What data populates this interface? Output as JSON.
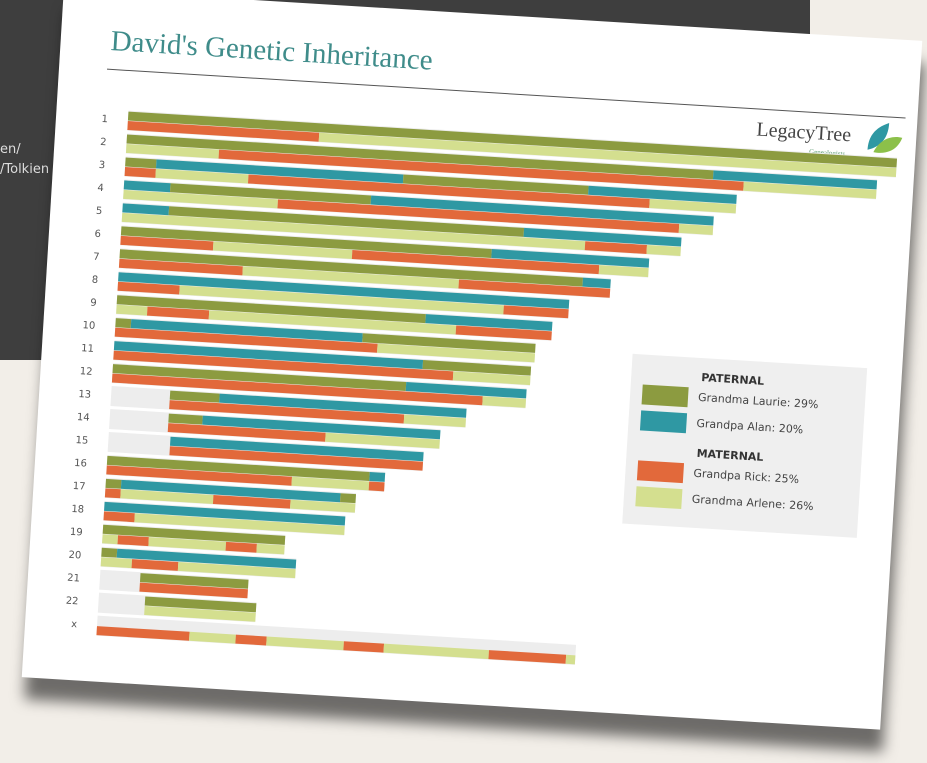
{
  "background_screen": {
    "texts": [
      "en/",
      "/Tolkien"
    ]
  },
  "chart_data": {
    "type": "chromosome-painting",
    "title": "David's Genetic Inheritance",
    "logo": {
      "name": "LegacyTree",
      "subtitle": "Genealogists"
    },
    "xlim": [
      0,
      249
    ],
    "legend_groups": [
      {
        "title": "PATERNAL",
        "series": [
          {
            "name": "Grandma Laurie: 29%",
            "color": "#8c9b40"
          },
          {
            "name": "Grandpa Alan: 20%",
            "color": "#2f98a3"
          }
        ]
      },
      {
        "title": "MATERNAL",
        "series": [
          {
            "name": "Grandpa Rick: 25%",
            "color": "#e2693b"
          },
          {
            "name": "Grandma Arlene: 26%",
            "color": "#d4df8f"
          }
        ]
      }
    ],
    "chromosomes": [
      {
        "label": "1",
        "length": 249,
        "paternal": [
          [
            0,
            249,
            0
          ]
        ],
        "maternal": [
          [
            0,
            62,
            0
          ],
          [
            62,
            249,
            1
          ]
        ]
      },
      {
        "label": "2",
        "length": 243,
        "paternal": [
          [
            0,
            190,
            0
          ],
          [
            190,
            243,
            1
          ]
        ],
        "maternal": [
          [
            0,
            30,
            1
          ],
          [
            30,
            200,
            0
          ],
          [
            200,
            243,
            1
          ]
        ]
      },
      {
        "label": "3",
        "length": 198,
        "paternal": [
          [
            0,
            10,
            0
          ],
          [
            10,
            90,
            1
          ],
          [
            90,
            150,
            0
          ],
          [
            150,
            198,
            1
          ]
        ],
        "maternal": [
          [
            0,
            10,
            0
          ],
          [
            10,
            40,
            1
          ],
          [
            40,
            170,
            0
          ],
          [
            170,
            198,
            1
          ]
        ]
      },
      {
        "label": "4",
        "length": 191,
        "paternal": [
          [
            0,
            15,
            1
          ],
          [
            15,
            80,
            0
          ],
          [
            80,
            191,
            1
          ]
        ],
        "maternal": [
          [
            0,
            50,
            1
          ],
          [
            50,
            180,
            0
          ],
          [
            180,
            191,
            1
          ]
        ]
      },
      {
        "label": "5",
        "length": 181,
        "paternal": [
          [
            0,
            15,
            1
          ],
          [
            15,
            130,
            0
          ],
          [
            130,
            181,
            1
          ]
        ],
        "maternal": [
          [
            0,
            150,
            1
          ],
          [
            150,
            170,
            0
          ],
          [
            170,
            181,
            1
          ]
        ]
      },
      {
        "label": "6",
        "length": 171,
        "paternal": [
          [
            0,
            120,
            0
          ],
          [
            120,
            171,
            1
          ]
        ],
        "maternal": [
          [
            0,
            30,
            0
          ],
          [
            30,
            75,
            1
          ],
          [
            75,
            155,
            0
          ],
          [
            155,
            171,
            1
          ]
        ]
      },
      {
        "label": "7",
        "length": 159,
        "paternal": [
          [
            0,
            150,
            0
          ],
          [
            150,
            159,
            1
          ]
        ],
        "maternal": [
          [
            0,
            40,
            0
          ],
          [
            40,
            110,
            1
          ],
          [
            110,
            159,
            0
          ]
        ]
      },
      {
        "label": "8",
        "length": 146,
        "paternal": [
          [
            0,
            146,
            1
          ]
        ],
        "maternal": [
          [
            0,
            20,
            0
          ],
          [
            20,
            125,
            1
          ],
          [
            125,
            146,
            0
          ]
        ]
      },
      {
        "label": "9",
        "length": 141,
        "paternal": [
          [
            0,
            100,
            0
          ],
          [
            100,
            141,
            1
          ]
        ],
        "maternal": [
          [
            0,
            10,
            1
          ],
          [
            10,
            30,
            0
          ],
          [
            30,
            110,
            1
          ],
          [
            110,
            141,
            0
          ]
        ]
      },
      {
        "label": "10",
        "length": 136,
        "paternal": [
          [
            0,
            5,
            0
          ],
          [
            5,
            80,
            1
          ],
          [
            80,
            136,
            0
          ]
        ],
        "maternal": [
          [
            0,
            85,
            0
          ],
          [
            85,
            136,
            1
          ]
        ]
      },
      {
        "label": "11",
        "length": 135,
        "paternal": [
          [
            0,
            100,
            1
          ],
          [
            100,
            135,
            0
          ]
        ],
        "maternal": [
          [
            0,
            110,
            0
          ],
          [
            110,
            135,
            1
          ]
        ]
      },
      {
        "label": "12",
        "length": 134,
        "paternal": [
          [
            0,
            95,
            0
          ],
          [
            95,
            134,
            1
          ]
        ],
        "maternal": [
          [
            0,
            120,
            0
          ],
          [
            120,
            134,
            1
          ]
        ]
      },
      {
        "label": "13",
        "length": 115,
        "paternal": [
          [
            19,
            35,
            0
          ],
          [
            35,
            115,
            1
          ]
        ],
        "maternal": [
          [
            19,
            95,
            0
          ],
          [
            95,
            115,
            1
          ]
        ]
      },
      {
        "label": "14",
        "length": 107,
        "paternal": [
          [
            19,
            30,
            0
          ],
          [
            30,
            107,
            1
          ]
        ],
        "maternal": [
          [
            19,
            70,
            0
          ],
          [
            70,
            107,
            1
          ]
        ]
      },
      {
        "label": "15",
        "length": 102,
        "paternal": [
          [
            20,
            102,
            1
          ]
        ],
        "maternal": [
          [
            20,
            102,
            0
          ]
        ]
      },
      {
        "label": "16",
        "length": 90,
        "paternal": [
          [
            0,
            85,
            0
          ],
          [
            85,
            90,
            1
          ]
        ],
        "maternal": [
          [
            0,
            60,
            0
          ],
          [
            60,
            85,
            1
          ],
          [
            85,
            90,
            0
          ]
        ]
      },
      {
        "label": "17",
        "length": 81,
        "paternal": [
          [
            0,
            5,
            0
          ],
          [
            5,
            76,
            1
          ],
          [
            76,
            81,
            0
          ]
        ],
        "maternal": [
          [
            0,
            5,
            0
          ],
          [
            5,
            35,
            1
          ],
          [
            35,
            60,
            0
          ],
          [
            60,
            81,
            1
          ]
        ]
      },
      {
        "label": "18",
        "length": 78,
        "paternal": [
          [
            0,
            78,
            1
          ]
        ],
        "maternal": [
          [
            0,
            10,
            0
          ],
          [
            10,
            78,
            1
          ]
        ]
      },
      {
        "label": "19",
        "length": 59,
        "paternal": [
          [
            0,
            59,
            0
          ]
        ],
        "maternal": [
          [
            0,
            5,
            1
          ],
          [
            5,
            15,
            0
          ],
          [
            15,
            40,
            1
          ],
          [
            40,
            50,
            0
          ],
          [
            50,
            59,
            1
          ]
        ]
      },
      {
        "label": "20",
        "length": 63,
        "paternal": [
          [
            0,
            5,
            0
          ],
          [
            5,
            63,
            1
          ]
        ],
        "maternal": [
          [
            0,
            10,
            1
          ],
          [
            10,
            25,
            0
          ],
          [
            25,
            63,
            1
          ]
        ]
      },
      {
        "label": "21",
        "length": 48,
        "paternal": [
          [
            13,
            48,
            0
          ]
        ],
        "maternal": [
          [
            13,
            48,
            0
          ]
        ]
      },
      {
        "label": "22",
        "length": 51,
        "paternal": [
          [
            15,
            51,
            0
          ]
        ],
        "maternal": [
          [
            15,
            51,
            1
          ]
        ]
      },
      {
        "label": "x",
        "length": 155,
        "maternal": [
          [
            0,
            30,
            0
          ],
          [
            30,
            45,
            1
          ],
          [
            45,
            55,
            0
          ],
          [
            55,
            80,
            1
          ],
          [
            80,
            93,
            0
          ],
          [
            93,
            127,
            1
          ],
          [
            127,
            152,
            0
          ],
          [
            152,
            155,
            1
          ]
        ]
      }
    ]
  }
}
